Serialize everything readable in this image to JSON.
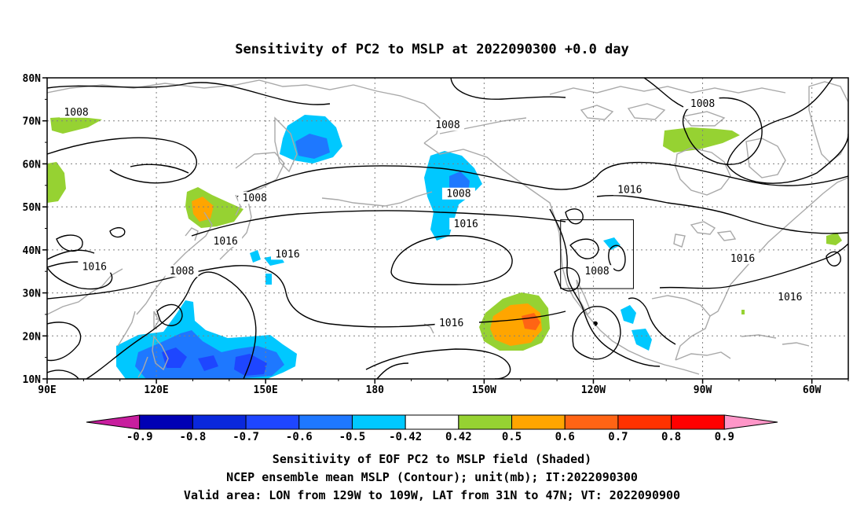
{
  "title": "Sensitivity of PC2 to MSLP at 2022090300 +0.0 day",
  "lat_labels": [
    "80N",
    "70N",
    "60N",
    "50N",
    "40N",
    "30N",
    "20N",
    "10N"
  ],
  "lon_labels": [
    "90E",
    "120E",
    "150E",
    "180",
    "150W",
    "120W",
    "90W",
    "60W"
  ],
  "contour_labels": [
    {
      "text": "1008",
      "lon": 98,
      "lat": 72
    },
    {
      "text": "1008",
      "lon": 270,
      "lat": 74
    },
    {
      "text": "1008",
      "lon": 200,
      "lat": 69
    },
    {
      "text": "1008",
      "lon": 147,
      "lat": 52
    },
    {
      "text": "1008",
      "lon": 203,
      "lat": 53
    },
    {
      "text": "1016",
      "lon": 250,
      "lat": 54
    },
    {
      "text": "1016",
      "lon": 139,
      "lat": 42
    },
    {
      "text": "1016",
      "lon": 205,
      "lat": 46
    },
    {
      "text": "1016",
      "lon": 156,
      "lat": 39
    },
    {
      "text": "1016",
      "lon": 103,
      "lat": 36
    },
    {
      "text": "1008",
      "lon": 127,
      "lat": 35
    },
    {
      "text": "1008",
      "lon": 241,
      "lat": 35
    },
    {
      "text": "1016",
      "lon": 281,
      "lat": 38
    },
    {
      "text": "1016",
      "lon": 294,
      "lat": 29
    },
    {
      "text": "1016",
      "lon": 201,
      "lat": 23
    }
  ],
  "colorbar": {
    "labels": [
      "-0.9",
      "-0.8",
      "-0.7",
      "-0.6",
      "-0.5",
      "-0.42",
      "0.42",
      "0.5",
      "0.6",
      "0.7",
      "0.8",
      "0.9"
    ],
    "colors": [
      "#c81e9e",
      "#0000b4",
      "#0a28dc",
      "#1e46ff",
      "#1e78ff",
      "#00c8ff",
      "#ffffff",
      "#96d232",
      "#ffa500",
      "#ff6414",
      "#ff3200",
      "#ff0000",
      "#ff96c8"
    ]
  },
  "footer": {
    "line1": "Sensitivity of EOF PC2 to MSLP field (Shaded)",
    "line2": "NCEP ensemble mean MSLP (Contour); unit(mb); IT:2022090300",
    "line3": "Valid area: LON from 129W to 109W, LAT from 31N to 47N; VT: 2022090900"
  },
  "map": {
    "lon_range": [
      90,
      310
    ],
    "lat_range": [
      10,
      80
    ],
    "valid_box": {
      "lon_from": 231,
      "lon_to": 251,
      "lat_from": 31,
      "lat_to": 47
    }
  }
}
